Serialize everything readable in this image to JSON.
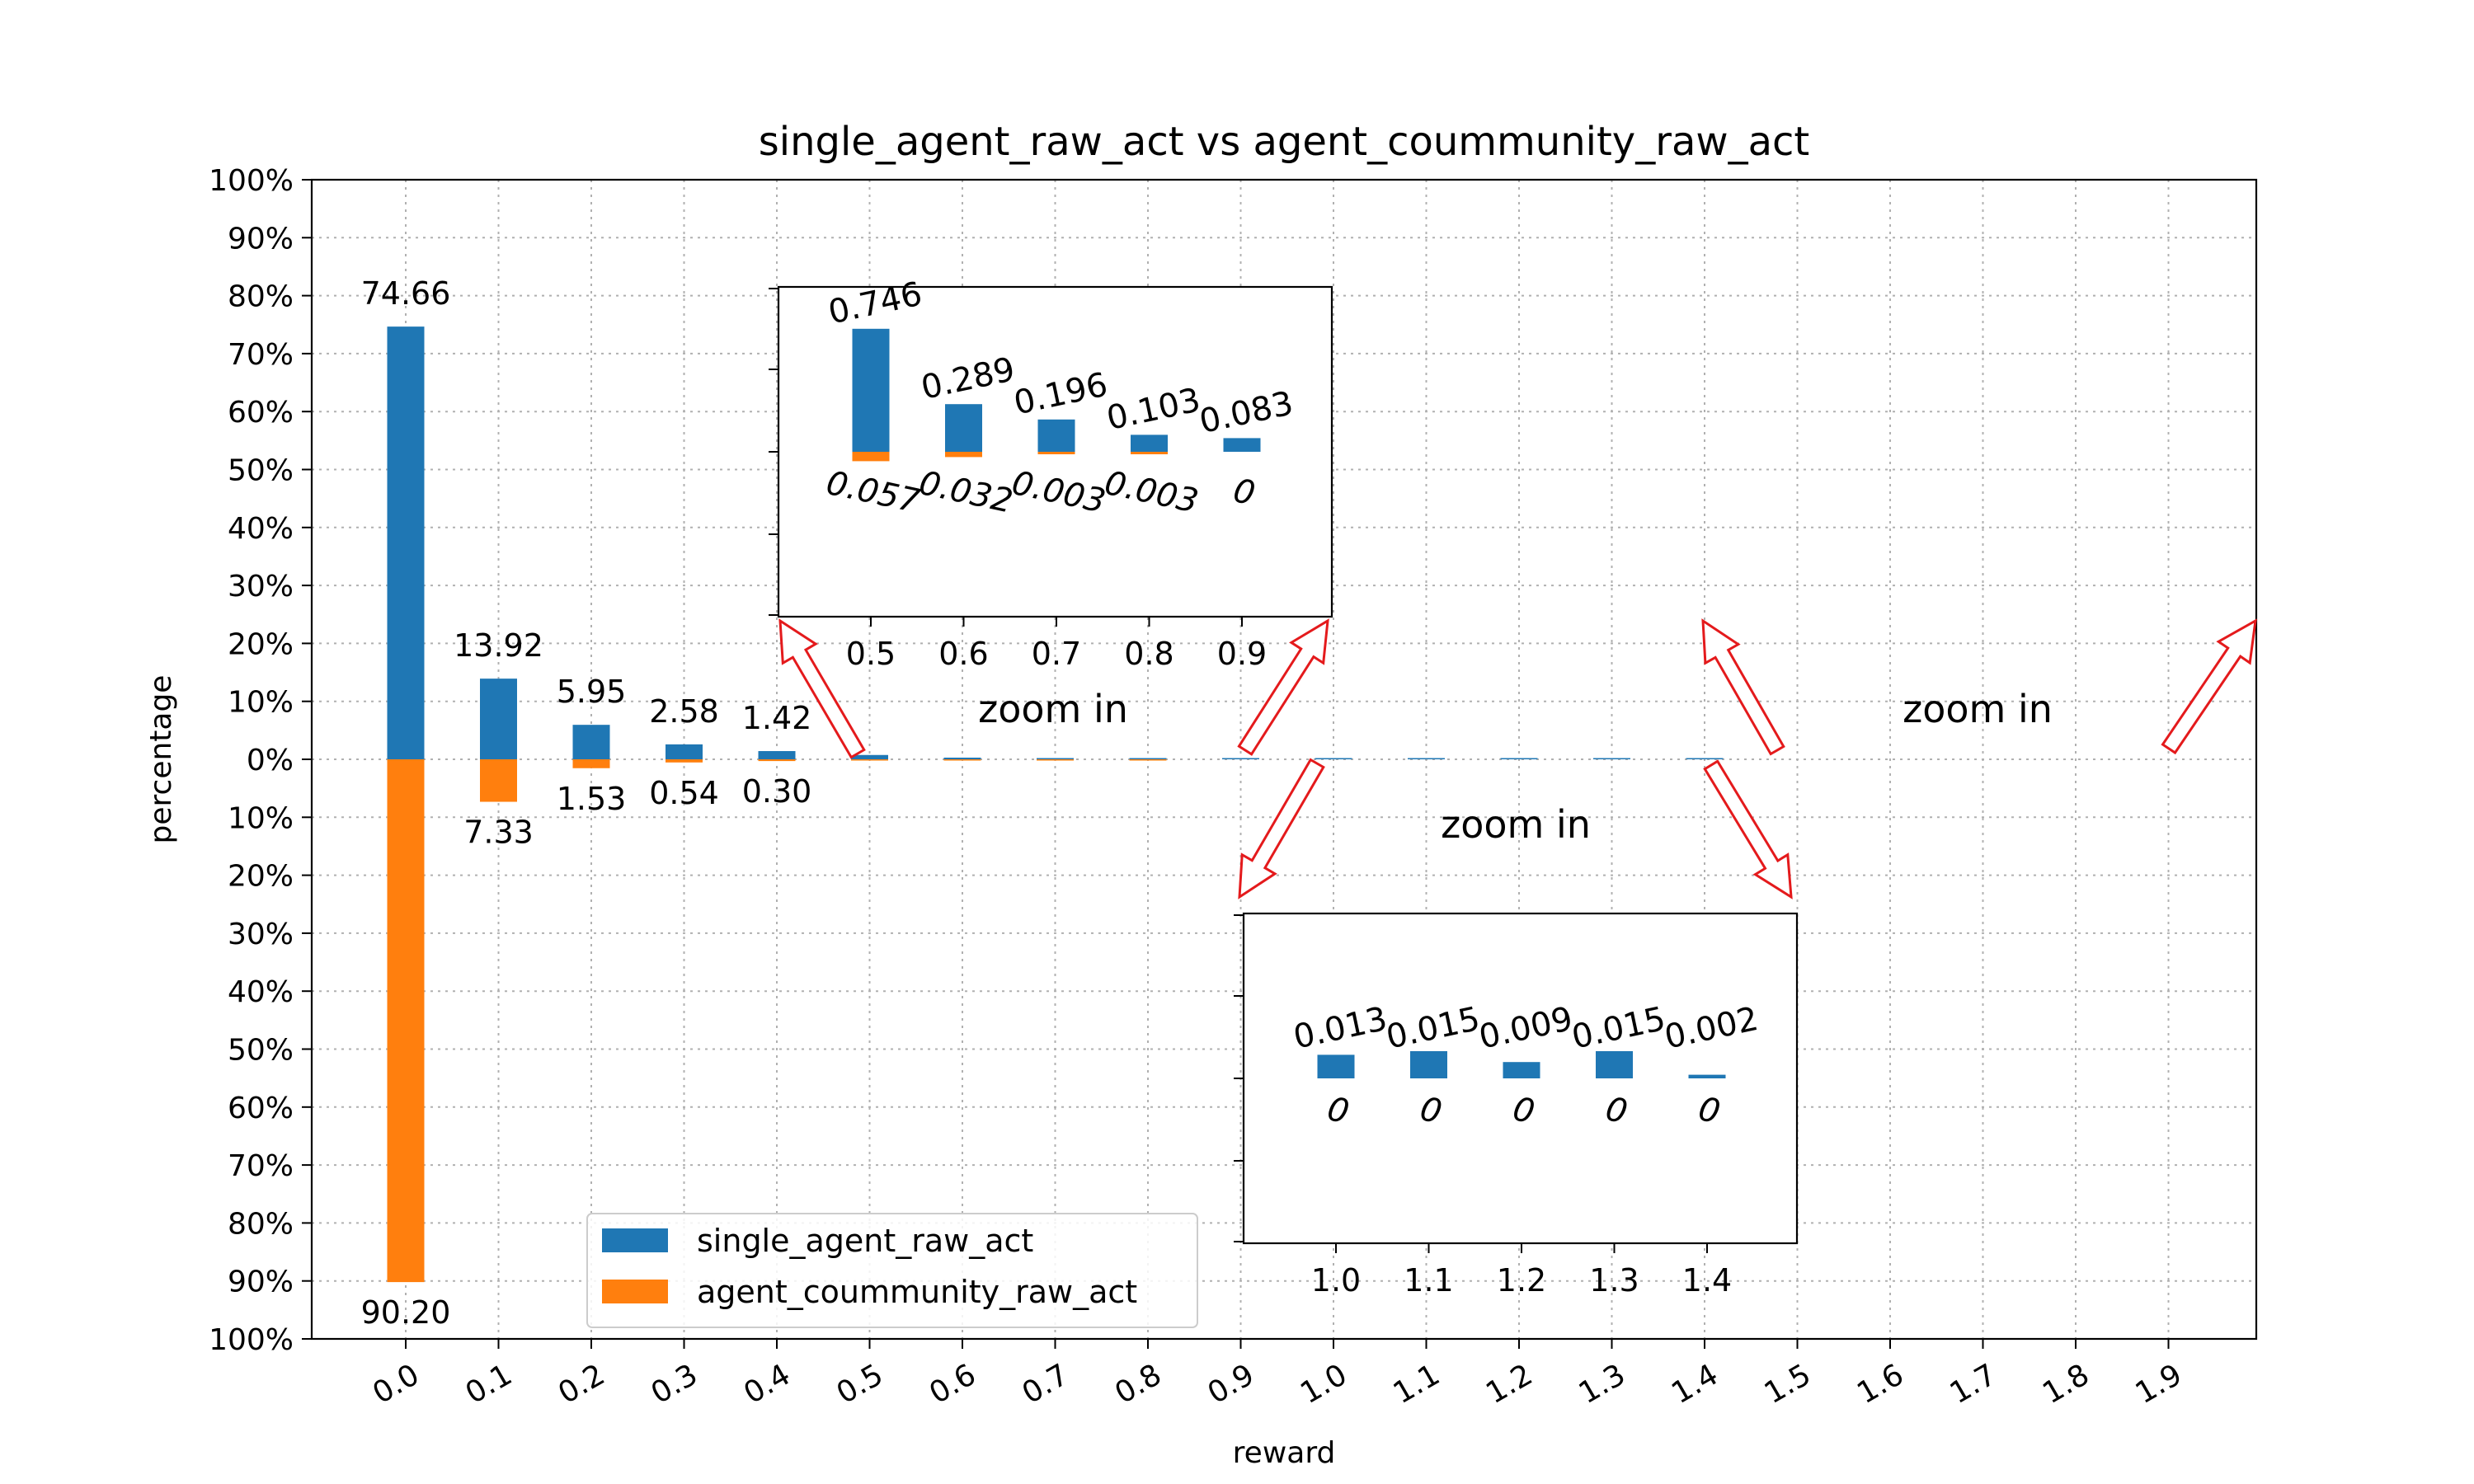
{
  "chart_data": {
    "type": "bar",
    "title": "single_agent_raw_act vs agent_coummunity_raw_act",
    "xlabel": "reward",
    "ylabel": "percentage",
    "categories": [
      "0.0",
      "0.1",
      "0.2",
      "0.3",
      "0.4",
      "0.5",
      "0.6",
      "0.7",
      "0.8",
      "0.9",
      "1.0",
      "1.1",
      "1.2",
      "1.3",
      "1.4",
      "1.5",
      "1.6",
      "1.7",
      "1.8",
      "1.9"
    ],
    "ylim": [
      -100,
      100
    ],
    "yticks": [
      "100%",
      "90%",
      "80%",
      "70%",
      "60%",
      "50%",
      "40%",
      "30%",
      "20%",
      "10%",
      "0%",
      "10%",
      "20%",
      "30%",
      "40%",
      "50%",
      "60%",
      "70%",
      "80%",
      "90%",
      "100%"
    ],
    "grid": true,
    "legend_position": "lower-center",
    "series": [
      {
        "name": "single_agent_raw_act",
        "color": "#1f77b4",
        "direction": "up",
        "values": [
          74.66,
          13.92,
          5.95,
          2.58,
          1.42,
          0.746,
          0.289,
          0.196,
          0.103,
          0.083,
          0.013,
          0.015,
          0.009,
          0.015,
          0.002,
          0,
          0,
          0,
          0,
          0
        ]
      },
      {
        "name": "agent_coummunity_raw_act",
        "color": "#ff7f0e",
        "direction": "down",
        "values": [
          90.2,
          7.33,
          1.53,
          0.54,
          0.3,
          0.057,
          0.032,
          0.003,
          0.003,
          0,
          0,
          0,
          0,
          0,
          0,
          0,
          0,
          0,
          0,
          0
        ]
      }
    ],
    "main_labels": {
      "up": [
        "74.66",
        "13.92",
        "5.95",
        "2.58",
        "1.42"
      ],
      "down": [
        "90.20",
        "7.33",
        "1.53",
        "0.54",
        "0.30"
      ]
    },
    "insets": [
      {
        "categories": [
          "0.5",
          "0.6",
          "0.7",
          "0.8",
          "0.9"
        ],
        "up_labels": [
          "0.746",
          "0.289",
          "0.196",
          "0.103",
          "0.083"
        ],
        "down_labels": [
          "0.057",
          "0.032",
          "0.003",
          "0.003",
          "0"
        ]
      },
      {
        "categories": [
          "1.0",
          "1.1",
          "1.2",
          "1.3",
          "1.4"
        ],
        "up_labels": [
          "0.013",
          "0.015",
          "0.009",
          "0.015",
          "0.002"
        ],
        "down_labels": [
          "0",
          "0",
          "0",
          "0",
          "0"
        ]
      }
    ],
    "annotations": [
      "zoom in",
      "zoom in",
      "zoom in"
    ]
  }
}
